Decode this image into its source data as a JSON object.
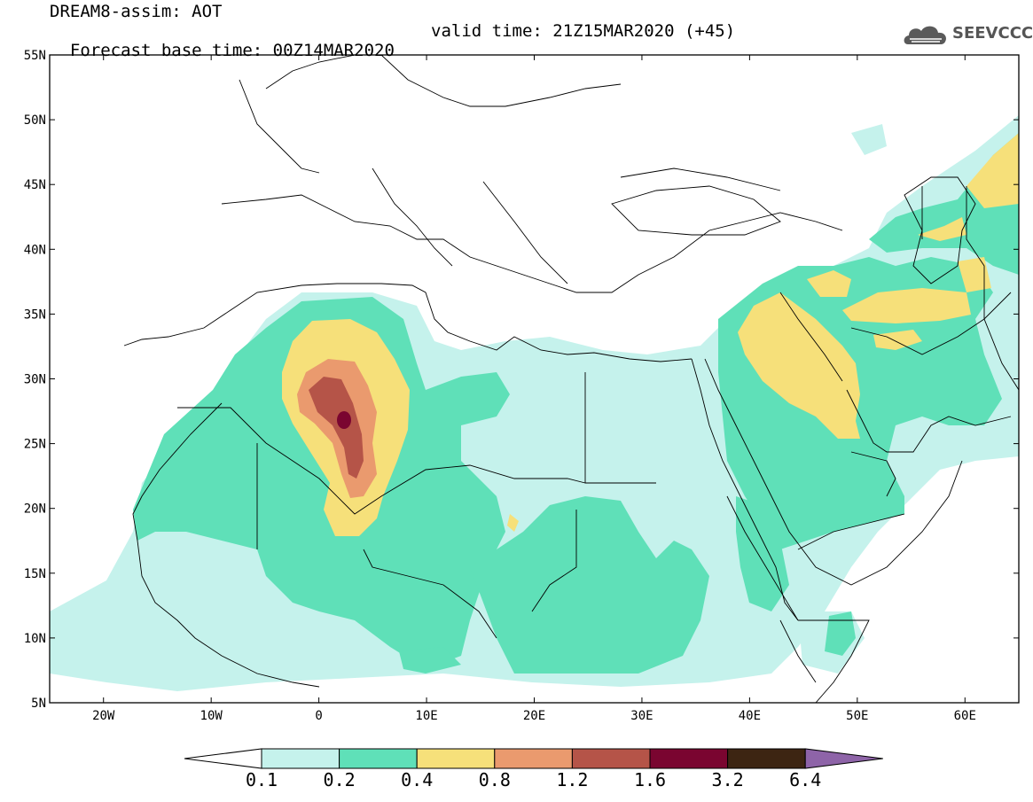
{
  "title": {
    "line1": "DREAM8-assim: AOT",
    "base": "Forecast base time: 00Z14MAR2020",
    "valid": "valid time: 21Z15MAR2020 (+45)"
  },
  "logo": {
    "text": "SEEVCCC",
    "icon": "cloud-icon",
    "color": "#555555"
  },
  "map": {
    "extent": {
      "lon": [
        -25,
        65
      ],
      "lat": [
        5,
        55
      ]
    },
    "lat_ticks": [
      {
        "v": 55,
        "label": "55N"
      },
      {
        "v": 50,
        "label": "50N"
      },
      {
        "v": 45,
        "label": "45N"
      },
      {
        "v": 40,
        "label": "40N"
      },
      {
        "v": 35,
        "label": "35N"
      },
      {
        "v": 30,
        "label": "30N"
      },
      {
        "v": 25,
        "label": "25N"
      },
      {
        "v": 20,
        "label": "20N"
      },
      {
        "v": 15,
        "label": "15N"
      },
      {
        "v": 10,
        "label": "10N"
      },
      {
        "v": 5,
        "label": "5N"
      }
    ],
    "lon_ticks": [
      {
        "v": -20,
        "label": "20W"
      },
      {
        "v": -10,
        "label": "10W"
      },
      {
        "v": 0,
        "label": "0"
      },
      {
        "v": 10,
        "label": "10E"
      },
      {
        "v": 20,
        "label": "20E"
      },
      {
        "v": 30,
        "label": "30E"
      },
      {
        "v": 40,
        "label": "40E"
      },
      {
        "v": 50,
        "label": "50E"
      },
      {
        "v": 60,
        "label": "60E"
      }
    ]
  },
  "colorbar": {
    "colors": [
      "#c5f2ec",
      "#5fe0b8",
      "#f6e07a",
      "#ea9a6e",
      "#b55448",
      "#7a0530",
      "#3d2512",
      "#8e64a8"
    ],
    "ticks": [
      "0.1",
      "0.2",
      "0.4",
      "0.8",
      "1.2",
      "1.6",
      "3.2",
      "6.4"
    ]
  }
}
